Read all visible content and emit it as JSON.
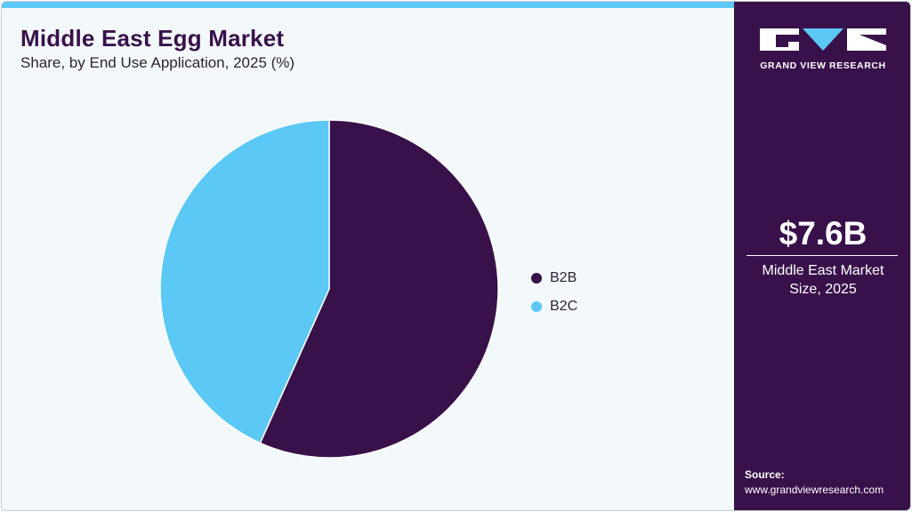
{
  "header": {
    "title": "Middle East Egg Market",
    "subtitle": "Share, by End Use Application, 2025 (%)"
  },
  "legend": [
    {
      "label": "B2B",
      "color": "#38114a"
    },
    {
      "label": "B2C",
      "color": "#5bc8f5"
    }
  ],
  "sidebar": {
    "brand": "GRAND VIEW RESEARCH",
    "market_size_value": "$7.6B",
    "market_size_label_line1": "Middle East Market",
    "market_size_label_line2": "Size, 2025",
    "source_title": "Source:",
    "source_url": "www.grandviewresearch.com"
  },
  "colors": {
    "accent_dark": "#38114a",
    "accent_light": "#5bc8f5",
    "background": "#f3f8fb"
  },
  "chart_data": {
    "type": "pie",
    "title": "Middle East Egg Market",
    "subtitle": "Share, by End Use Application, 2025 (%)",
    "categories": [
      "B2B",
      "B2C"
    ],
    "values": [
      56.7,
      43.3
    ],
    "colors": [
      "#38114a",
      "#5bc8f5"
    ],
    "start_angle": "12 o'clock, clockwise",
    "legend_position": "right"
  }
}
